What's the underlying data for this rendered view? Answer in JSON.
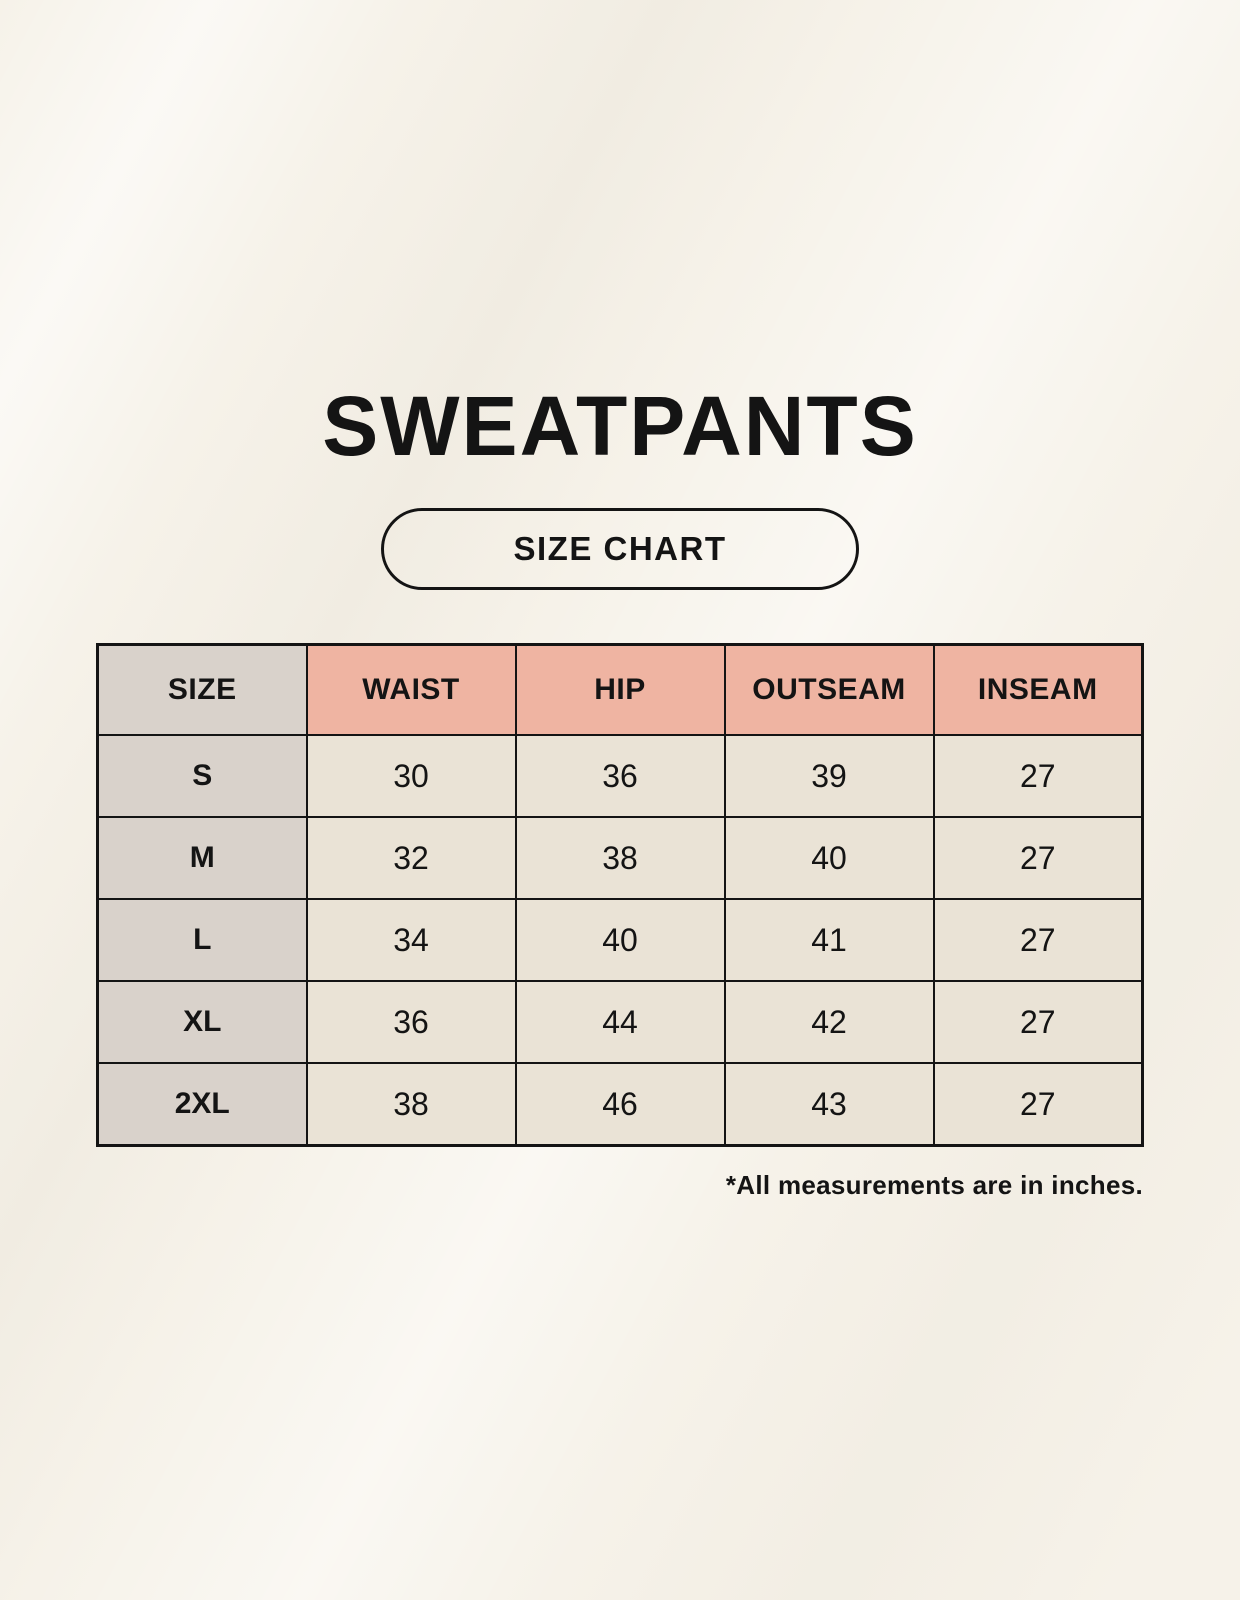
{
  "header": {
    "title": "SWEATPANTS",
    "badge_label": "SIZE CHART"
  },
  "chart_data": {
    "type": "table",
    "title": "SWEATPANTS",
    "subtitle": "SIZE CHART",
    "columns": [
      "SIZE",
      "WAIST",
      "HIP",
      "OUTSEAM",
      "INSEAM"
    ],
    "rows": [
      [
        "S",
        "30",
        "36",
        "39",
        "27"
      ],
      [
        "M",
        "32",
        "38",
        "40",
        "27"
      ],
      [
        "L",
        "34",
        "40",
        "41",
        "27"
      ],
      [
        "XL",
        "36",
        "44",
        "42",
        "27"
      ],
      [
        "2XL",
        "38",
        "46",
        "43",
        "27"
      ]
    ],
    "note": "*All measurements are in inches."
  },
  "colors": {
    "background": "#f6f2e9",
    "header_pink": "#efb4a2",
    "size_column_gray": "#d9d2cb",
    "data_cell_beige": "#eae3d6",
    "border_black": "#141414",
    "text_black": "#141414"
  }
}
